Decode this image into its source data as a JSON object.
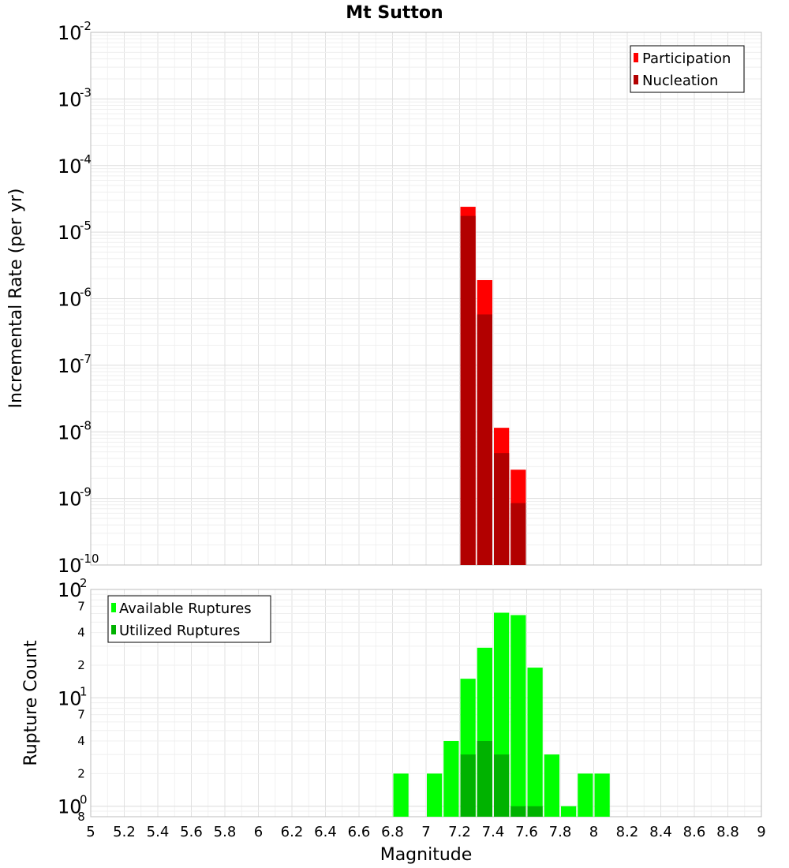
{
  "chart_data": [
    {
      "type": "bar",
      "title": "Mt Sutton",
      "xlabel": "",
      "ylabel": "Incremental Rate (per yr)",
      "xlim": [
        5,
        9
      ],
      "ylim": [
        1e-10,
        0.01
      ],
      "yscale": "log",
      "grid": true,
      "bin_width": 0.1,
      "y_ticks": [
        {
          "base": "10",
          "exp": "-10"
        },
        {
          "base": "10",
          "exp": "-9"
        },
        {
          "base": "10",
          "exp": "-8"
        },
        {
          "base": "10",
          "exp": "-7"
        },
        {
          "base": "10",
          "exp": "-6"
        },
        {
          "base": "10",
          "exp": "-5"
        },
        {
          "base": "10",
          "exp": "-4"
        },
        {
          "base": "10",
          "exp": "-3"
        },
        {
          "base": "10",
          "exp": "-2"
        }
      ],
      "legend_position": "top-right",
      "series": [
        {
          "name": "Participation",
          "color": "#ff0000",
          "x": [
            7.25,
            7.35,
            7.45,
            7.55
          ],
          "values": [
            2.4e-05,
            1.9e-06,
            1.15e-08,
            2.7e-09
          ]
        },
        {
          "name": "Nucleation",
          "color": "#b20000",
          "x": [
            7.25,
            7.35,
            7.45,
            7.55
          ],
          "values": [
            1.75e-05,
            5.8e-07,
            4.8e-09,
            8.5e-10
          ]
        }
      ]
    },
    {
      "type": "bar",
      "xlabel": "Magnitude",
      "ylabel": "Rupture Count",
      "xlim": [
        5,
        9
      ],
      "ylim": [
        0.8,
        100
      ],
      "yscale": "log",
      "grid": true,
      "bin_width": 0.1,
      "x_ticks": [
        "5",
        "5.2",
        "5.4",
        "5.6",
        "5.8",
        "6",
        "6.2",
        "6.4",
        "6.6",
        "6.8",
        "7",
        "7.2",
        "7.4",
        "7.6",
        "7.8",
        "8",
        "8.2",
        "8.4",
        "8.6",
        "8.8",
        "9"
      ],
      "y_major_ticks": [
        {
          "base": "10",
          "exp": "0"
        },
        {
          "base": "10",
          "exp": "1"
        },
        {
          "base": "10",
          "exp": "2"
        }
      ],
      "y_minor_ticks": [
        "8",
        "2",
        "4",
        "7",
        "2",
        "4",
        "7"
      ],
      "legend_position": "top-left",
      "series": [
        {
          "name": "Available Ruptures",
          "color": "#00ff00",
          "x": [
            6.85,
            7.05,
            7.15,
            7.25,
            7.35,
            7.45,
            7.55,
            7.65,
            7.75,
            7.85,
            7.95,
            8.05
          ],
          "values": [
            2,
            2,
            4,
            15,
            29,
            61,
            58,
            19,
            3,
            1,
            2,
            2
          ]
        },
        {
          "name": "Utilized Ruptures",
          "color": "#00b200",
          "x": [
            7.25,
            7.35,
            7.45,
            7.55,
            7.65
          ],
          "values": [
            3,
            4,
            3,
            1,
            1
          ]
        }
      ]
    }
  ]
}
